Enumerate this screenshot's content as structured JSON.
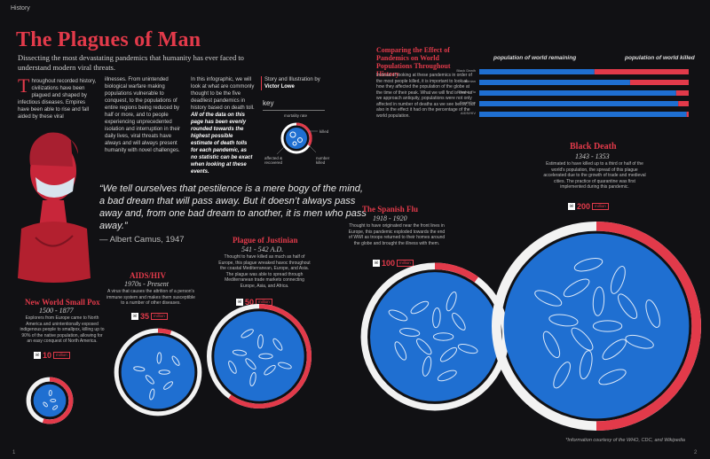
{
  "header": {
    "section": "History",
    "page_left": "1",
    "page_right": "2"
  },
  "title": "The Plagues of Man",
  "subtitle": "Dissecting the most devastating pandemics that humanity has ever faced to understand modern viral threats.",
  "intro": {
    "dropcap": "T",
    "p1": "hroughout recorded history, civilizations have been plagued and shaped by infectious diseases. Empires have been able to rise and fall aided by these viral",
    "p2": "illnesses. From unintended biological warfare making populations vulnerable to conquest, to the populations of entire regions being reduced by half or more, and to people experiencing unprecedented isolation and interruption in their daily lives, viral threats have always and will always present humanity with novel challenges.",
    "p3": "In this infographic, we will look at what are commonly thought to be the five deadliest pandemics in history based on death toll.",
    "p3_bold": "All of the data on this page has been evenly rounded towards the highest possible estimate of death tolls for each pandemic, as no statistic can be exact when looking at these events."
  },
  "credit": {
    "line1": "Story and Illustration by",
    "author": "Victor Lowe"
  },
  "key": {
    "label": "key",
    "mortality": "mortality rate",
    "killed": "killed",
    "affected": "affected & recovered",
    "number": "number killed"
  },
  "quote": {
    "text": "“We tell ourselves that pestilence is a mere bogy of the mind, a bad dream that will pass away. But it doesn’t always pass away and, from one bad dream to another, it is men who pass away.”",
    "author": "— Albert Camus, 1947"
  },
  "comparison": {
    "title": "Comparing the Effect of Pandemics on World Populations Throughout History",
    "description": "Instead of looking at these pandemics in order of the most people killed, it is important to look at how they affected the population of the globe at the time of their peak. What we will find is that as we approach antiquity, populations were not only affected in number of deaths as we see below, but also in the effect it had on the percentage of the world population.",
    "remaining_label": "population of world remaining",
    "killed_label": "population of world killed"
  },
  "pandemics": [
    {
      "name": "New World Small Pox",
      "dates": "1500 - 1877",
      "desc": "Explorers from Europe came to North America and unintentionally exposed indigenous people to smallpox, killing up to 90% of the native population, allowing for an easy conquest of North America.",
      "killed": "10",
      "unit": "million"
    },
    {
      "name": "AIDS/HIV",
      "dates": "1970s - Present",
      "desc": "A virus that causes the attrition of a person's immune system and makes them susceptible to a number of other diseases.",
      "killed": "35",
      "unit": "million"
    },
    {
      "name": "Plague of Justinian",
      "dates": "541 - 542 A.D.",
      "desc": "Thought to have killed as much as half of Europe, this plague wreaked havoc throughout the coastal Mediterranean, Europe, and Asia. The plague was able to spread through Mediterranean trade markets connecting Europe, Asia, and Africa.",
      "killed": "50",
      "unit": "million"
    },
    {
      "name": "The Spanish Flu",
      "dates": "1918 - 1920",
      "desc": "Thought to have originated near the front lines in Europe, this pandemic exploded towards the end of WWI as troops returned to their homes around the globe and brought the illness with them.",
      "killed": "100",
      "unit": "million"
    },
    {
      "name": "Black Death",
      "dates": "1343 - 1353",
      "desc": "Estimated to have killed up to a third or half of the world's population, the spread of this plague accelerated due to the growth of trade and medieval cities. The practice of quarantine was first implemented during this pandemic.",
      "killed": "200",
      "unit": "million"
    }
  ],
  "footnote": "*Information courtesy of the WHO, CDC, and Wikipedia",
  "colors": {
    "red": "#e23a4a",
    "blue": "#1f6fd1",
    "background": "#111114"
  },
  "chart_data": [
    {
      "type": "bar",
      "orientation": "horizontal",
      "stacked": true,
      "title": "Comparing the Effect of Pandemics on World Populations Throughout History",
      "categories": [
        "Black Death",
        "Justinian",
        "Spanish Flu",
        "Small Pox",
        "AIDS/HIV"
      ],
      "series": [
        {
          "name": "population of world remaining",
          "values": [
            0.55,
            0.72,
            0.94,
            0.95,
            0.99
          ]
        },
        {
          "name": "population of world killed",
          "values": [
            0.45,
            0.28,
            0.06,
            0.05,
            0.01
          ]
        }
      ],
      "xlim": [
        0,
        1
      ],
      "legend": "top",
      "grid": false
    },
    {
      "type": "bubble",
      "title": "",
      "categories": [
        "New World Small Pox",
        "AIDS/HIV",
        "Plague of Justinian",
        "The Spanish Flu",
        "Black Death"
      ],
      "values": [
        10,
        35,
        50,
        100,
        200
      ],
      "unit": "million",
      "mortality_rate": [
        0.55,
        0.05,
        0.6,
        0.1,
        0.5
      ]
    }
  ]
}
